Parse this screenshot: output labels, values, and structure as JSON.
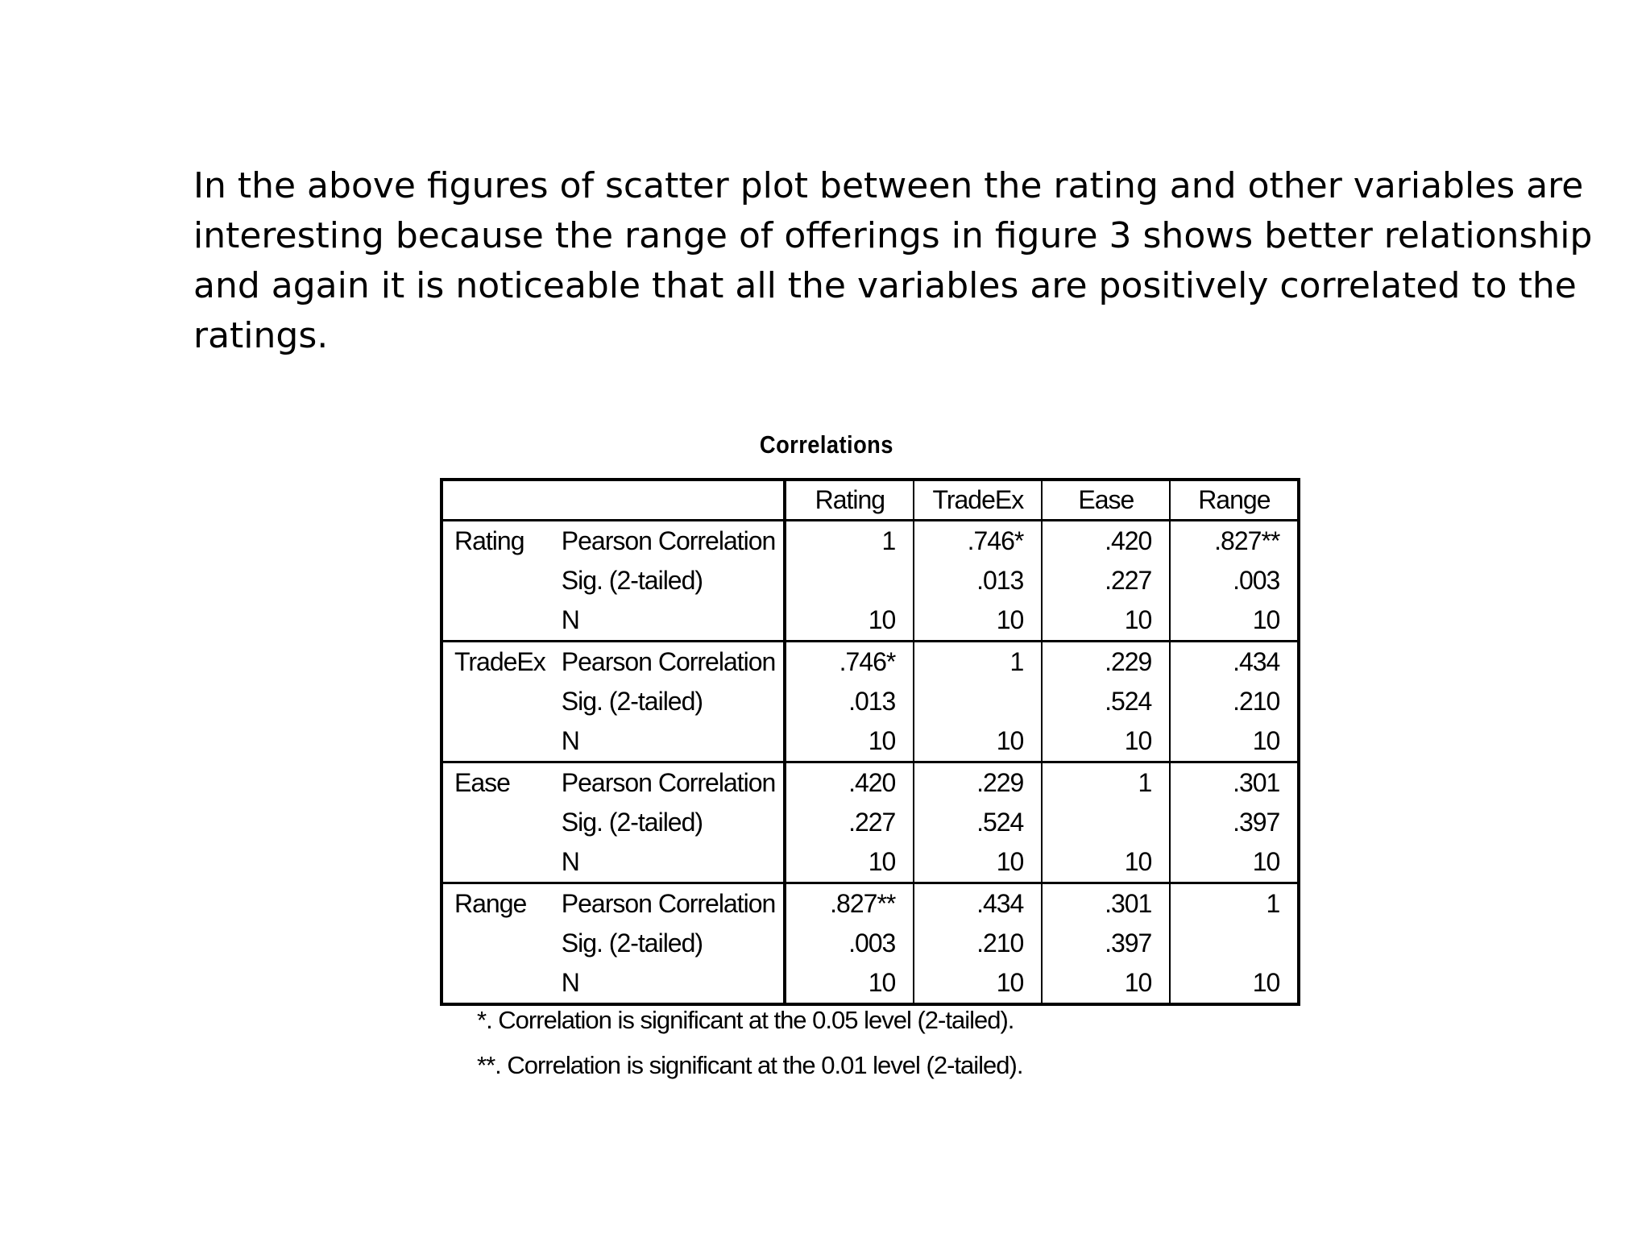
{
  "paragraph": {
    "lines": [
      "In the above figures of scatter plot between the rating and other variables are",
      "interesting because the range of offerings in figure 3 shows better relationship",
      "and again it is noticeable that all the variables are positively correlated to the",
      "ratings."
    ]
  },
  "table": {
    "title": "Correlations",
    "columns": [
      "Rating",
      "TradeEx",
      "Ease",
      "Range"
    ],
    "stat_labels": [
      "Pearson Correlation",
      "Sig. (2-tailed)",
      "N"
    ],
    "groups": [
      {
        "variable": "Rating",
        "rows": [
          [
            "1",
            ".746*",
            ".420",
            ".827**"
          ],
          [
            "",
            ".013",
            ".227",
            ".003"
          ],
          [
            "10",
            "10",
            "10",
            "10"
          ]
        ]
      },
      {
        "variable": "TradeEx",
        "rows": [
          [
            ".746*",
            "1",
            ".229",
            ".434"
          ],
          [
            ".013",
            "",
            ".524",
            ".210"
          ],
          [
            "10",
            "10",
            "10",
            "10"
          ]
        ]
      },
      {
        "variable": "Ease",
        "rows": [
          [
            ".420",
            ".229",
            "1",
            ".301"
          ],
          [
            ".227",
            ".524",
            "",
            ".397"
          ],
          [
            "10",
            "10",
            "10",
            "10"
          ]
        ]
      },
      {
        "variable": "Range",
        "rows": [
          [
            ".827**",
            ".434",
            ".301",
            "1"
          ],
          [
            ".003",
            ".210",
            ".397",
            ""
          ],
          [
            "10",
            "10",
            "10",
            "10"
          ]
        ]
      }
    ],
    "footnotes": [
      "*. Correlation is significant at the 0.05 level (2-tailed).",
      "**. Correlation is significant at the 0.01 level (2-tailed)."
    ]
  }
}
